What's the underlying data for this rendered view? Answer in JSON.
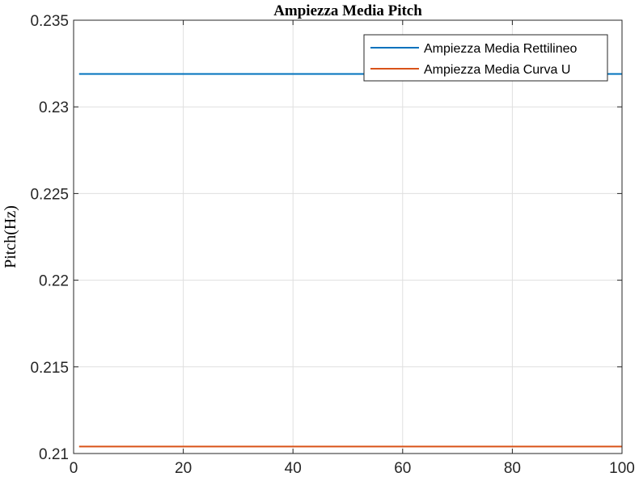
{
  "chart_data": {
    "type": "line",
    "title": "Ampiezza Media Pitch",
    "xlabel": "",
    "ylabel": "Pitch(Hz)",
    "xlim": [
      0,
      100
    ],
    "ylim": [
      0.21,
      0.235
    ],
    "xticks": [
      0,
      20,
      40,
      60,
      80,
      100
    ],
    "xtick_labels": [
      "0",
      "20",
      "40",
      "60",
      "80",
      "100"
    ],
    "yticks": [
      0.21,
      0.215,
      0.22,
      0.225,
      0.23,
      0.235
    ],
    "ytick_labels": [
      "0.21",
      "0.215",
      "0.22",
      "0.225",
      "0.23",
      "0.235"
    ],
    "grid": true,
    "legend_position": "top-right",
    "series": [
      {
        "name": "Ampiezza Media Rettilineo",
        "color": "#0072BD",
        "x": [
          1,
          100
        ],
        "y": [
          0.2319,
          0.2319
        ]
      },
      {
        "name": "Ampiezza Media Curva U",
        "color": "#D95319",
        "x": [
          1,
          100
        ],
        "y": [
          0.2104,
          0.2104
        ]
      }
    ]
  }
}
